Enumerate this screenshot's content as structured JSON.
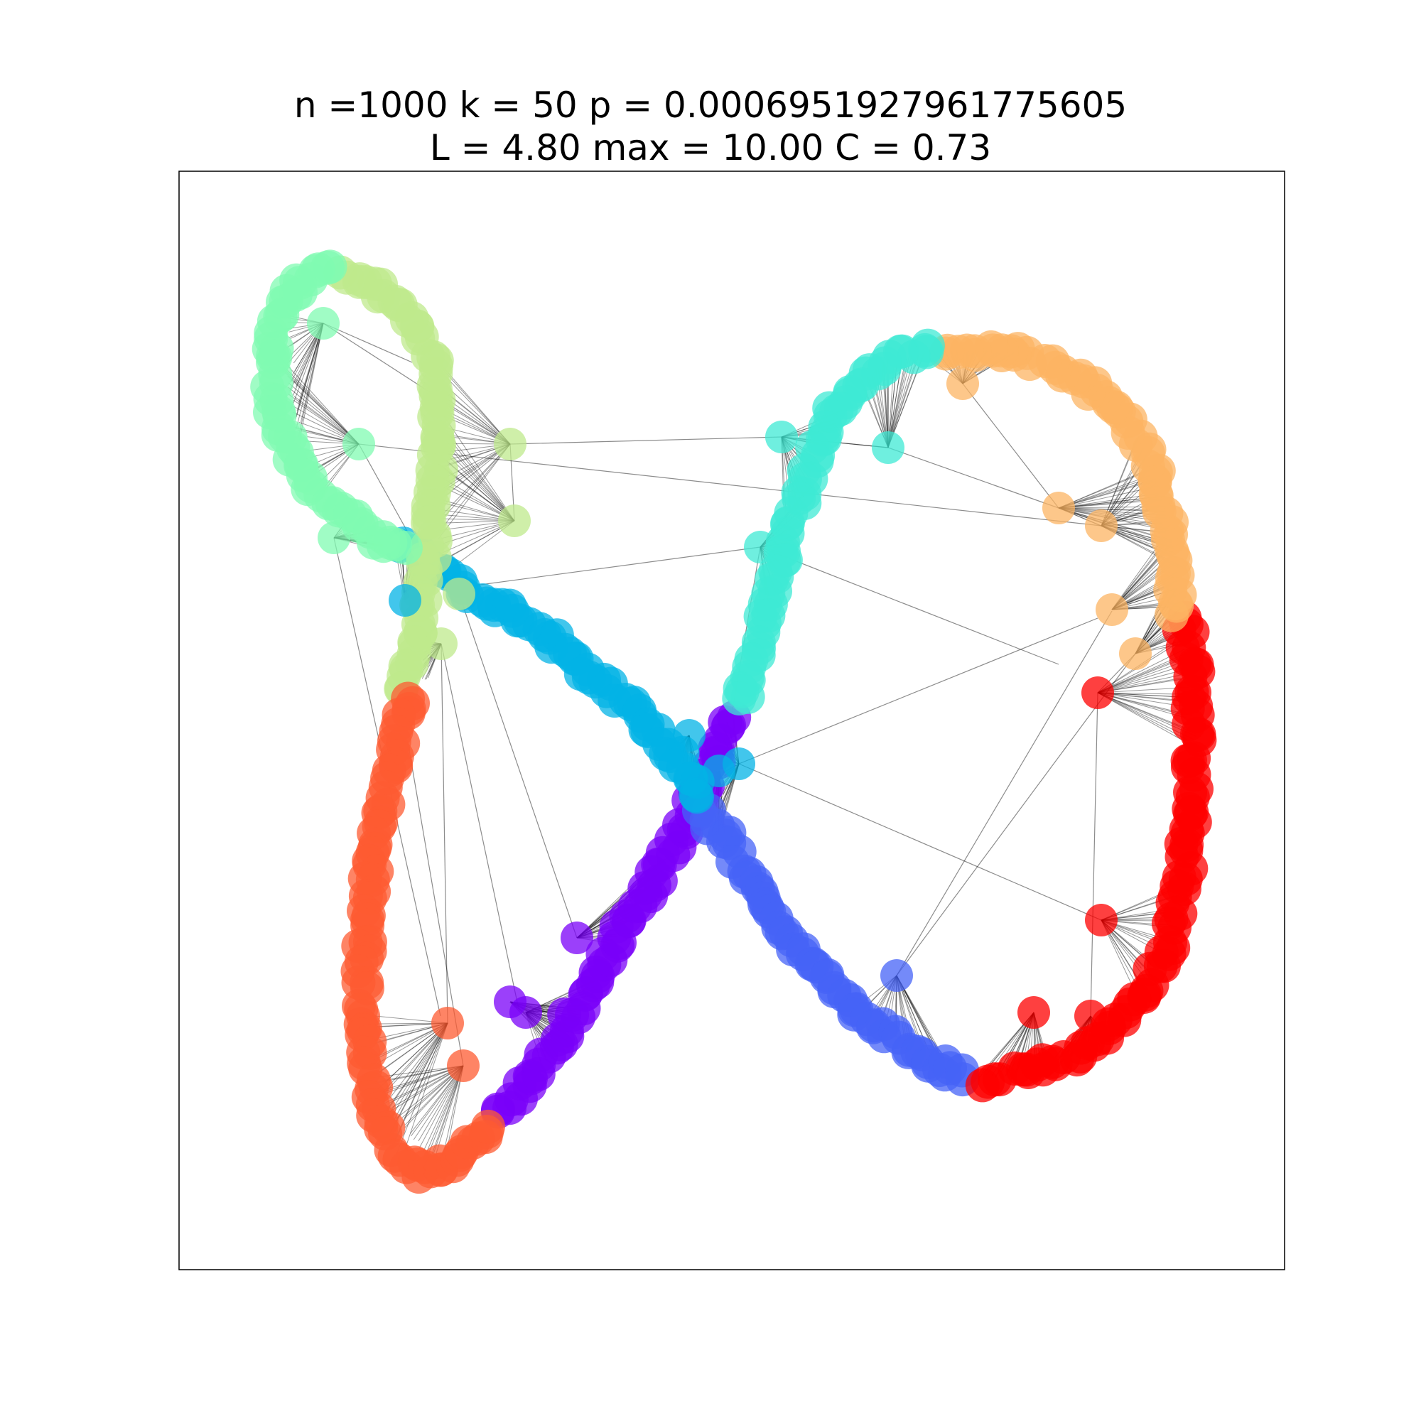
{
  "figure": {
    "title_line1": "n =1000 k = 50 p = 0.0006951927961775605",
    "title_line2": "L = 4.80 max = 10.00 C = 0.73"
  },
  "graph": {
    "node_count": 1000,
    "k": 50,
    "p": "0.0006951927961775605",
    "avg_path_length": "4.80",
    "max_path_length": "10.00",
    "clustering": "0.73",
    "layout": "figure-eight ring",
    "communities": [
      {
        "name": "purple",
        "color": "#7a00f8"
      },
      {
        "name": "blue",
        "color": "#4563f7"
      },
      {
        "name": "red",
        "color": "#fe0000"
      },
      {
        "name": "orange",
        "color": "#fcb463"
      },
      {
        "name": "turquoise",
        "color": "#3fe9d4"
      },
      {
        "name": "sky-blue",
        "color": "#03b3e6"
      },
      {
        "name": "light-green",
        "color": "#bfea8c"
      },
      {
        "name": "mint",
        "color": "#80fbb1"
      },
      {
        "name": "coral",
        "color": "#fe5b32"
      }
    ]
  }
}
